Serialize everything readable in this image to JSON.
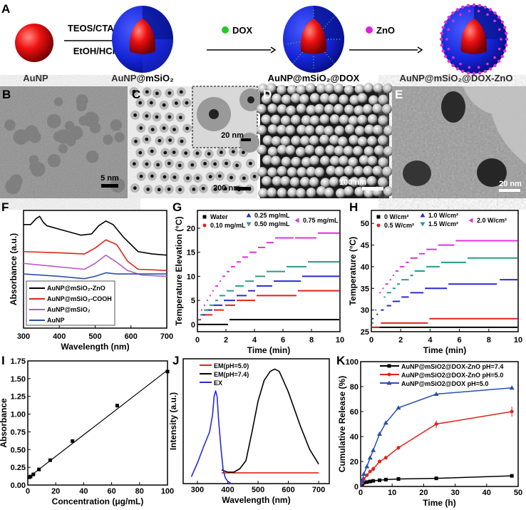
{
  "panel_labels": {
    "A": "A",
    "B": "B",
    "C": "C",
    "D": "D",
    "E": "E",
    "F": "F",
    "G": "G",
    "H": "H",
    "I": "I",
    "J": "J",
    "K": "K"
  },
  "scheme": {
    "step1_top": "TEOS/CTAB",
    "step1_bottom": "EtOH/HCl",
    "step2": "DOX",
    "step3": "ZnO",
    "labels": [
      "AuNP",
      "AuNP@mSiO₂",
      "AuNP@mSiO₂@DOX",
      "AuNP@mSiO₂@DOX-ZnO"
    ],
    "colors": {
      "gold_core": "#e8141b",
      "silica_shell": "#1b2fd6",
      "dox": "#22cc22",
      "zno": "#e020e0"
    }
  },
  "micrographs": {
    "B": {
      "scale_bar": "5 nm"
    },
    "C": {
      "scale_bar": "200 nm",
      "inset_scale_bar": "20 nm"
    },
    "D": {
      "scale_bar": "100 nm"
    },
    "E": {
      "scale_bar": "20 nm"
    }
  },
  "chart_data": [
    {
      "panel": "F",
      "type": "line",
      "xlabel": "Wavelength (nm)",
      "ylabel": "Absorbance (a.u.)",
      "xlim": [
        300,
        700
      ],
      "ylim": [
        0,
        1
      ],
      "xticks": [
        "300",
        "400",
        "500",
        "600",
        "700"
      ],
      "xtick_values": [
        300,
        400,
        500,
        600,
        700
      ],
      "legend_position": "bottom-left",
      "series": [
        {
          "name": "AuNP@mSiO₂-ZnO",
          "color": "#000000",
          "x": [
            300,
            320,
            335,
            345,
            355,
            365,
            400,
            460,
            490,
            510,
            530,
            550,
            580,
            620,
            660,
            700
          ],
          "y": [
            0.88,
            0.88,
            0.93,
            0.95,
            0.9,
            0.87,
            0.84,
            0.79,
            0.8,
            0.87,
            0.91,
            0.88,
            0.77,
            0.65,
            0.63,
            0.62
          ]
        },
        {
          "name": "AuNP@mSiO₂-COOH",
          "color": "#e0231c",
          "x": [
            300,
            400,
            470,
            500,
            530,
            560,
            590,
            620,
            700
          ],
          "y": [
            0.65,
            0.64,
            0.63,
            0.68,
            0.75,
            0.71,
            0.57,
            0.5,
            0.49
          ]
        },
        {
          "name": "AuNP@mSiO₂",
          "color": "#b25cc0",
          "x": [
            300,
            400,
            470,
            500,
            530,
            560,
            590,
            630,
            700
          ],
          "y": [
            0.55,
            0.52,
            0.5,
            0.55,
            0.62,
            0.56,
            0.49,
            0.45,
            0.44
          ]
        },
        {
          "name": "AuNP",
          "color": "#2c4fa8",
          "x": [
            300,
            400,
            470,
            500,
            530,
            560,
            600,
            700
          ],
          "y": [
            0.46,
            0.44,
            0.42,
            0.44,
            0.47,
            0.46,
            0.46,
            0.46
          ]
        }
      ]
    },
    {
      "panel": "G",
      "type": "step",
      "xlabel": "Time (min)",
      "ylabel": "Temperature Elevation (°C)",
      "xlim": [
        0,
        10
      ],
      "ylim": [
        -1.5,
        23.7
      ],
      "xticks": [
        "0",
        "2",
        "4",
        "6",
        "8",
        "10"
      ],
      "xtick_values": [
        0,
        2,
        4,
        6,
        8,
        10
      ],
      "yticks": [
        "0",
        "5",
        "10",
        "15",
        "20"
      ],
      "ytick_values": [
        0,
        5,
        10,
        15,
        20
      ],
      "legend_position": "top",
      "series": [
        {
          "name": "Water",
          "color": "#000000",
          "marker": "square",
          "steps": [
            [
              0,
              2.2,
              0
            ],
            [
              2.2,
              10,
              1
            ]
          ]
        },
        {
          "name": "0.10 mg/mL",
          "color": "#e0231c",
          "marker": "circle",
          "steps": [
            [
              0,
              0.3,
              1
            ],
            [
              0.3,
              1.1,
              2
            ],
            [
              1.1,
              1.9,
              3
            ],
            [
              1.9,
              2.7,
              4
            ],
            [
              2.7,
              4.1,
              5
            ],
            [
              4.1,
              7,
              6
            ],
            [
              7,
              10,
              7
            ]
          ]
        },
        {
          "name": "0.25 mg/mL",
          "color": "#2a2ad0",
          "marker": "triangle-up",
          "steps": [
            [
              0,
              0.2,
              1
            ],
            [
              0.2,
              0.6,
              2
            ],
            [
              0.6,
              1.1,
              3
            ],
            [
              1.1,
              1.8,
              4
            ],
            [
              1.8,
              2.7,
              5
            ],
            [
              2.7,
              3.5,
              6
            ],
            [
              3.5,
              4.1,
              7
            ],
            [
              4.1,
              5.3,
              8
            ],
            [
              5.3,
              7.3,
              9
            ],
            [
              7.3,
              10,
              10
            ]
          ]
        },
        {
          "name": "0.50 mg/mL",
          "color": "#2a9a8a",
          "marker": "triangle-down",
          "steps": [
            [
              0,
              0.15,
              1
            ],
            [
              0.15,
              0.4,
              2
            ],
            [
              0.4,
              0.8,
              3
            ],
            [
              0.8,
              1.2,
              4
            ],
            [
              1.2,
              1.5,
              5
            ],
            [
              1.5,
              2,
              6
            ],
            [
              2,
              2.6,
              7
            ],
            [
              2.6,
              3.3,
              8
            ],
            [
              3.3,
              4,
              9
            ],
            [
              4,
              4.8,
              10
            ],
            [
              4.8,
              6.2,
              11
            ],
            [
              6.2,
              7.7,
              12
            ],
            [
              7.7,
              10,
              13
            ]
          ]
        },
        {
          "name": "0.75 mg/mL",
          "color": "#e030e0",
          "marker": "triangle-left",
          "steps": [
            [
              0,
              0.2,
              1
            ],
            [
              0.2,
              0.4,
              3
            ],
            [
              0.4,
              0.6,
              4
            ],
            [
              0.6,
              0.8,
              5
            ],
            [
              0.8,
              1,
              6
            ],
            [
              1,
              1.2,
              7
            ],
            [
              1.2,
              1.5,
              8
            ],
            [
              1.5,
              1.7,
              9
            ],
            [
              1.7,
              2,
              10
            ],
            [
              2,
              2.3,
              11
            ],
            [
              2.3,
              2.7,
              12
            ],
            [
              2.7,
              3.1,
              13
            ],
            [
              3.1,
              3.6,
              14
            ],
            [
              3.6,
              4.2,
              15
            ],
            [
              4.2,
              4.8,
              16
            ],
            [
              4.8,
              5.4,
              17
            ],
            [
              5.4,
              6.8,
              18
            ],
            [
              6.8,
              8.4,
              18
            ],
            [
              8.4,
              10,
              19
            ]
          ]
        }
      ]
    },
    {
      "panel": "H",
      "type": "step",
      "xlabel": "Time (min)",
      "ylabel": "Temperature (°C)",
      "xlim": [
        0,
        10
      ],
      "ylim": [
        25,
        53
      ],
      "xticks": [
        "0",
        "2",
        "4",
        "6",
        "8",
        "10"
      ],
      "xtick_values": [
        0,
        2,
        4,
        6,
        8,
        10
      ],
      "yticks": [
        "25",
        "30",
        "35",
        "40",
        "45",
        "50"
      ],
      "ytick_values": [
        25,
        30,
        35,
        40,
        45,
        50
      ],
      "legend_position": "top",
      "series": [
        {
          "name": "0 W/cm²",
          "color": "#000000",
          "marker": "square",
          "steps": [
            [
              0,
              10,
              26
            ]
          ]
        },
        {
          "name": "0.5 W/cm²",
          "color": "#e0231c",
          "marker": "circle",
          "steps": [
            [
              0,
              0.6,
              26
            ],
            [
              0.6,
              3.9,
              27
            ],
            [
              3.9,
              10,
              28
            ]
          ]
        },
        {
          "name": "1.0 W/cm²",
          "color": "#2a2ad0",
          "marker": "triangle-up",
          "steps": [
            [
              0,
              0.2,
              28
            ],
            [
              0.3,
              0.5,
              29
            ],
            [
              0.6,
              0.9,
              30
            ],
            [
              1,
              1.4,
              31
            ],
            [
              1.4,
              2,
              32
            ],
            [
              2,
              2.6,
              33
            ],
            [
              2.6,
              3.6,
              34
            ],
            [
              3.6,
              5.2,
              35
            ],
            [
              5.2,
              8.6,
              36
            ],
            [
              8.7,
              10,
              37
            ]
          ]
        },
        {
          "name": "1.5 W/cm²",
          "color": "#2a9a8a",
          "marker": "triangle-down",
          "steps": [
            [
              0,
              0.2,
              27
            ],
            [
              0.2,
              0.4,
              30
            ],
            [
              0.5,
              0.6,
              31
            ],
            [
              0.7,
              0.8,
              32
            ],
            [
              0.8,
              1,
              33
            ],
            [
              1,
              1.4,
              34
            ],
            [
              1.4,
              1.7,
              35
            ],
            [
              1.7,
              2,
              36
            ],
            [
              2,
              2.6,
              37
            ],
            [
              2.6,
              2.9,
              38
            ],
            [
              2.9,
              3.7,
              39
            ],
            [
              3.7,
              4.7,
              40
            ],
            [
              4.7,
              6.5,
              41
            ],
            [
              6.5,
              10,
              42
            ]
          ]
        },
        {
          "name": "2.0 W/cm²",
          "color": "#e030e0",
          "marker": "triangle-left",
          "steps": [
            [
              0.2,
              0.3,
              30
            ],
            [
              0.3,
              0.4,
              32
            ],
            [
              0.4,
              0.5,
              33
            ],
            [
              0.5,
              0.7,
              34
            ],
            [
              0.7,
              0.9,
              35
            ],
            [
              0.9,
              1.2,
              36
            ],
            [
              1.2,
              1.4,
              37
            ],
            [
              1.4,
              1.6,
              38
            ],
            [
              1.6,
              1.9,
              39
            ],
            [
              1.9,
              2.3,
              40
            ],
            [
              2.3,
              2.6,
              41
            ],
            [
              2.6,
              3.2,
              42
            ],
            [
              3.2,
              3.7,
              43
            ],
            [
              3.7,
              4.5,
              44
            ],
            [
              4.5,
              5.7,
              45
            ],
            [
              5.7,
              10,
              46
            ]
          ]
        }
      ]
    },
    {
      "panel": "I",
      "type": "scatter",
      "xlabel": "Concentration (μg/mL)",
      "ylabel": "Absorbance",
      "xlim": [
        0,
        100
      ],
      "ylim": [
        0,
        1.75
      ],
      "xticks": [
        "0",
        "20",
        "40",
        "60",
        "80",
        "100"
      ],
      "xtick_values": [
        0,
        20,
        40,
        60,
        80,
        100
      ],
      "yticks": [
        "0.00",
        "0.25",
        "0.50",
        "0.75",
        "1.00",
        "1.25",
        "1.50",
        "1.75"
      ],
      "ytick_values": [
        0,
        0.25,
        0.5,
        0.75,
        1,
        1.25,
        1.5,
        1.75
      ],
      "series": [
        {
          "x": [
            1,
            2,
            4,
            8,
            16,
            32,
            64,
            100
          ],
          "y": [
            0.11,
            0.12,
            0.15,
            0.22,
            0.35,
            0.62,
            1.12,
            1.6
          ],
          "color": "#000000"
        }
      ],
      "fit_line": {
        "x": [
          0,
          100
        ],
        "y": [
          0.1,
          1.62
        ]
      }
    },
    {
      "panel": "J",
      "type": "line",
      "xlabel": "Wavelength (nm)",
      "ylabel": "Intensity (a.u.)",
      "xlim": [
        253,
        735
      ],
      "ylim": [
        0,
        1.09
      ],
      "xticks": [
        "300",
        "400",
        "500",
        "600",
        "700"
      ],
      "xtick_values": [
        300,
        400,
        500,
        600,
        700
      ],
      "legend_position": "top-left",
      "series": [
        {
          "name": "EM(pH=5.0)",
          "color": "#e0231c",
          "x": [
            380,
            700
          ],
          "y": [
            0.094,
            0.094
          ]
        },
        {
          "name": "EM(pH=7.4)",
          "color": "#000000",
          "x": [
            380,
            400,
            420,
            440,
            460,
            480,
            500,
            520,
            540,
            555,
            570,
            600,
            640,
            670,
            700
          ],
          "y": [
            0.12,
            0.1,
            0.1,
            0.13,
            0.2,
            0.45,
            0.72,
            0.9,
            0.98,
            1.0,
            0.98,
            0.8,
            0.5,
            0.3,
            0.17
          ]
        },
        {
          "name": "EX",
          "color": "#2a2ad0",
          "x": [
            280,
            300,
            320,
            340,
            350,
            355,
            360,
            365,
            370,
            378,
            385,
            392,
            400,
            412
          ],
          "y": [
            0.06,
            0.18,
            0.32,
            0.45,
            0.6,
            0.76,
            0.81,
            0.76,
            0.55,
            0.3,
            0.12,
            0.05,
            0.02,
            0.0
          ]
        }
      ]
    },
    {
      "panel": "K",
      "type": "line",
      "xlabel": "Time (h)",
      "ylabel": "Cumulative Release (%)",
      "xlim": [
        0,
        50
      ],
      "ylim": [
        0,
        100
      ],
      "xticks": [
        "0",
        "10",
        "20",
        "30",
        "40",
        "50"
      ],
      "xtick_values": [
        0,
        10,
        20,
        30,
        40,
        50
      ],
      "yticks": [
        "0",
        "20",
        "40",
        "60",
        "80",
        "100"
      ],
      "ytick_values": [
        0,
        20,
        40,
        60,
        80,
        100
      ],
      "legend_position": "top",
      "x": [
        0,
        0.5,
        1,
        2,
        3,
        4,
        6,
        8,
        12,
        24,
        48
      ],
      "series": [
        {
          "name": "AuNP@mSiO2@DOX-ZnO pH=7.4",
          "color": "#000000",
          "marker": "square",
          "y": [
            0,
            2,
            3,
            3.5,
            4,
            4.5,
            5,
            5.5,
            6,
            6.5,
            8.5
          ],
          "err": [
            0,
            0,
            0,
            0,
            0,
            0,
            0,
            0,
            0,
            0.5,
            1
          ]
        },
        {
          "name": "AuNP@mSiO2@DOX-ZnO pH=5.0",
          "color": "#e0231c",
          "marker": "circle",
          "y": [
            0,
            3,
            6,
            9,
            12,
            14,
            20,
            23,
            31,
            50,
            60
          ],
          "err": [
            0,
            0,
            0,
            1,
            1,
            2,
            1.5,
            1.5,
            1.5,
            3,
            4
          ]
        },
        {
          "name": "AuNP@mSiO2@DOX pH=5.0",
          "color": "#2a4fb0",
          "marker": "triangle-up",
          "y": [
            0,
            5,
            10,
            16,
            23,
            29,
            42,
            51,
            63,
            74,
            79
          ],
          "err": [
            0,
            0,
            0,
            0,
            0,
            0,
            0,
            0,
            0,
            0,
            0
          ]
        }
      ]
    }
  ]
}
